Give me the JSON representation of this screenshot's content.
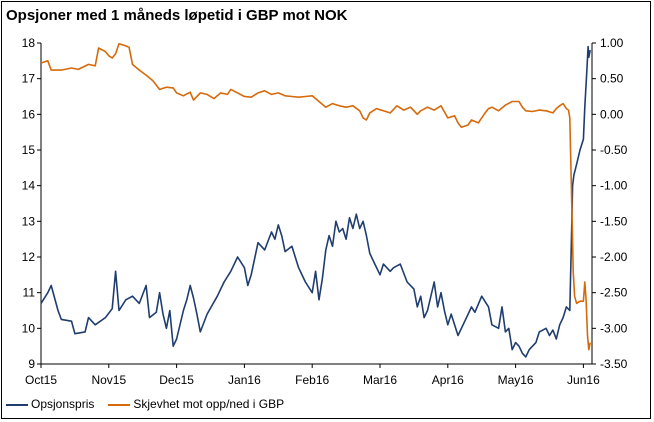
{
  "chart_data": {
    "type": "line",
    "title": "Opsjoner med 1 måneds løpetid i GBP mot NOK",
    "xlabel": "",
    "ylabel": "",
    "x_ticks": [
      "Oct15",
      "Nov15",
      "Dec15",
      "Jan16",
      "Feb16",
      "Mar16",
      "Apr16",
      "May16",
      "Jun16"
    ],
    "x_range": [
      0,
      8.1
    ],
    "y_left": {
      "lim": [
        9,
        18
      ],
      "ticks": [
        "9",
        "10",
        "11",
        "12",
        "13",
        "14",
        "15",
        "16",
        "17",
        "18"
      ]
    },
    "y_right": {
      "lim": [
        -3.5,
        1.0
      ],
      "ticks": [
        "1.00",
        "0.50",
        "0.00",
        "-0.50",
        "-1.00",
        "-1.50",
        "-2.00",
        "-2.50",
        "-3.00",
        "-3.50"
      ]
    },
    "grid": false,
    "legend_placement": "bottom-left",
    "series": [
      {
        "name": "Opsjonspris",
        "axis": "left",
        "color": "#1f3d6e",
        "points": [
          [
            0.0,
            10.7
          ],
          [
            0.1,
            11.0
          ],
          [
            0.15,
            11.2
          ],
          [
            0.25,
            10.5
          ],
          [
            0.3,
            10.25
          ],
          [
            0.45,
            10.2
          ],
          [
            0.5,
            9.85
          ],
          [
            0.65,
            9.9
          ],
          [
            0.7,
            10.3
          ],
          [
            0.8,
            10.1
          ],
          [
            0.95,
            10.3
          ],
          [
            1.05,
            10.55
          ],
          [
            1.1,
            11.6
          ],
          [
            1.15,
            10.5
          ],
          [
            1.25,
            10.8
          ],
          [
            1.35,
            10.9
          ],
          [
            1.45,
            10.7
          ],
          [
            1.55,
            11.2
          ],
          [
            1.6,
            10.3
          ],
          [
            1.7,
            10.45
          ],
          [
            1.75,
            11.0
          ],
          [
            1.8,
            10.4
          ],
          [
            1.85,
            10.0
          ],
          [
            1.9,
            10.5
          ],
          [
            1.95,
            9.5
          ],
          [
            2.0,
            9.7
          ],
          [
            2.1,
            10.5
          ],
          [
            2.15,
            10.8
          ],
          [
            2.2,
            11.2
          ],
          [
            2.25,
            10.85
          ],
          [
            2.3,
            10.4
          ],
          [
            2.35,
            9.9
          ],
          [
            2.45,
            10.4
          ],
          [
            2.6,
            10.9
          ],
          [
            2.7,
            11.3
          ],
          [
            2.8,
            11.6
          ],
          [
            2.9,
            12.0
          ],
          [
            3.0,
            11.7
          ],
          [
            3.05,
            11.2
          ],
          [
            3.1,
            11.5
          ],
          [
            3.2,
            12.4
          ],
          [
            3.3,
            12.2
          ],
          [
            3.4,
            12.7
          ],
          [
            3.45,
            12.5
          ],
          [
            3.5,
            12.9
          ],
          [
            3.55,
            12.6
          ],
          [
            3.6,
            12.15
          ],
          [
            3.7,
            12.3
          ],
          [
            3.8,
            11.7
          ],
          [
            3.9,
            11.3
          ],
          [
            4.0,
            11.0
          ],
          [
            4.05,
            11.6
          ],
          [
            4.1,
            10.8
          ],
          [
            4.15,
            11.4
          ],
          [
            4.2,
            12.2
          ],
          [
            4.25,
            12.6
          ],
          [
            4.3,
            12.3
          ],
          [
            4.35,
            13.0
          ],
          [
            4.4,
            12.7
          ],
          [
            4.45,
            12.8
          ],
          [
            4.5,
            12.5
          ],
          [
            4.55,
            13.1
          ],
          [
            4.6,
            12.8
          ],
          [
            4.65,
            13.2
          ],
          [
            4.7,
            12.8
          ],
          [
            4.75,
            13.0
          ],
          [
            4.8,
            12.6
          ],
          [
            4.85,
            12.1
          ],
          [
            4.9,
            11.9
          ],
          [
            5.0,
            11.5
          ],
          [
            5.05,
            11.8
          ],
          [
            5.15,
            11.6
          ],
          [
            5.2,
            11.7
          ],
          [
            5.3,
            11.8
          ],
          [
            5.4,
            11.3
          ],
          [
            5.5,
            11.1
          ],
          [
            5.55,
            10.6
          ],
          [
            5.6,
            10.9
          ],
          [
            5.65,
            10.3
          ],
          [
            5.7,
            10.5
          ],
          [
            5.8,
            11.3
          ],
          [
            5.85,
            10.6
          ],
          [
            5.9,
            11.0
          ],
          [
            5.95,
            10.5
          ],
          [
            6.0,
            10.1
          ],
          [
            6.05,
            10.4
          ],
          [
            6.15,
            9.8
          ],
          [
            6.25,
            10.2
          ],
          [
            6.35,
            10.6
          ],
          [
            6.4,
            10.45
          ],
          [
            6.5,
            10.9
          ],
          [
            6.6,
            10.6
          ],
          [
            6.65,
            10.1
          ],
          [
            6.75,
            10.0
          ],
          [
            6.8,
            10.6
          ],
          [
            6.85,
            9.9
          ],
          [
            6.9,
            10.0
          ],
          [
            6.95,
            9.4
          ],
          [
            7.0,
            9.6
          ],
          [
            7.05,
            9.5
          ],
          [
            7.1,
            9.3
          ],
          [
            7.15,
            9.2
          ],
          [
            7.2,
            9.4
          ],
          [
            7.3,
            9.6
          ],
          [
            7.35,
            9.9
          ],
          [
            7.45,
            10.0
          ],
          [
            7.5,
            9.8
          ],
          [
            7.55,
            9.95
          ],
          [
            7.6,
            9.7
          ],
          [
            7.65,
            10.1
          ],
          [
            7.7,
            10.3
          ],
          [
            7.75,
            10.6
          ],
          [
            7.8,
            10.5
          ],
          [
            7.82,
            12.2
          ],
          [
            7.84,
            14.0
          ],
          [
            7.86,
            14.3
          ],
          [
            7.9,
            14.6
          ],
          [
            7.95,
            15.0
          ],
          [
            8.0,
            15.3
          ],
          [
            8.02,
            16.2
          ],
          [
            8.05,
            17.2
          ],
          [
            8.07,
            17.9
          ],
          [
            8.08,
            17.6
          ],
          [
            8.1,
            17.8
          ]
        ]
      },
      {
        "name": "Skjevhet mot opp/ned i GBP",
        "axis": "right",
        "color": "#d66a0b",
        "points": [
          [
            0.0,
            0.72
          ],
          [
            0.1,
            0.75
          ],
          [
            0.15,
            0.62
          ],
          [
            0.3,
            0.62
          ],
          [
            0.45,
            0.65
          ],
          [
            0.55,
            0.63
          ],
          [
            0.7,
            0.7
          ],
          [
            0.8,
            0.68
          ],
          [
            0.85,
            0.93
          ],
          [
            0.95,
            0.88
          ],
          [
            1.0,
            0.82
          ],
          [
            1.05,
            0.79
          ],
          [
            1.1,
            0.85
          ],
          [
            1.15,
            0.99
          ],
          [
            1.25,
            0.96
          ],
          [
            1.3,
            0.94
          ],
          [
            1.35,
            0.7
          ],
          [
            1.45,
            0.62
          ],
          [
            1.55,
            0.55
          ],
          [
            1.65,
            0.47
          ],
          [
            1.75,
            0.35
          ],
          [
            1.85,
            0.38
          ],
          [
            1.95,
            0.37
          ],
          [
            2.0,
            0.3
          ],
          [
            2.1,
            0.26
          ],
          [
            2.2,
            0.31
          ],
          [
            2.25,
            0.2
          ],
          [
            2.35,
            0.3
          ],
          [
            2.45,
            0.28
          ],
          [
            2.55,
            0.22
          ],
          [
            2.65,
            0.3
          ],
          [
            2.75,
            0.28
          ],
          [
            2.8,
            0.35
          ],
          [
            2.9,
            0.3
          ],
          [
            3.0,
            0.25
          ],
          [
            3.1,
            0.24
          ],
          [
            3.2,
            0.3
          ],
          [
            3.3,
            0.33
          ],
          [
            3.4,
            0.28
          ],
          [
            3.5,
            0.3
          ],
          [
            3.6,
            0.26
          ],
          [
            3.7,
            0.25
          ],
          [
            3.8,
            0.24
          ],
          [
            3.9,
            0.25
          ],
          [
            4.0,
            0.26
          ],
          [
            4.1,
            0.18
          ],
          [
            4.2,
            0.1
          ],
          [
            4.3,
            0.15
          ],
          [
            4.4,
            0.12
          ],
          [
            4.5,
            0.1
          ],
          [
            4.6,
            0.12
          ],
          [
            4.7,
            0.05
          ],
          [
            4.75,
            -0.05
          ],
          [
            4.8,
            -0.08
          ],
          [
            4.85,
            0.02
          ],
          [
            4.95,
            0.08
          ],
          [
            5.05,
            0.05
          ],
          [
            5.15,
            0.02
          ],
          [
            5.25,
            0.12
          ],
          [
            5.35,
            0.06
          ],
          [
            5.45,
            0.1
          ],
          [
            5.55,
            0.0
          ],
          [
            5.6,
            0.05
          ],
          [
            5.7,
            0.1
          ],
          [
            5.8,
            0.06
          ],
          [
            5.9,
            0.12
          ],
          [
            6.0,
            -0.05
          ],
          [
            6.1,
            -0.02
          ],
          [
            6.15,
            -0.12
          ],
          [
            6.2,
            -0.18
          ],
          [
            6.3,
            -0.15
          ],
          [
            6.35,
            -0.08
          ],
          [
            6.45,
            -0.12
          ],
          [
            6.55,
            0.02
          ],
          [
            6.6,
            0.08
          ],
          [
            6.65,
            0.1
          ],
          [
            6.75,
            0.05
          ],
          [
            6.85,
            0.13
          ],
          [
            6.95,
            0.18
          ],
          [
            7.05,
            0.18
          ],
          [
            7.1,
            0.1
          ],
          [
            7.15,
            0.05
          ],
          [
            7.25,
            0.04
          ],
          [
            7.35,
            0.06
          ],
          [
            7.45,
            0.05
          ],
          [
            7.55,
            0.02
          ],
          [
            7.6,
            0.08
          ],
          [
            7.65,
            0.12
          ],
          [
            7.7,
            0.15
          ],
          [
            7.75,
            0.08
          ],
          [
            7.78,
            0.06
          ],
          [
            7.8,
            -0.05
          ],
          [
            7.82,
            -0.9
          ],
          [
            7.84,
            -1.8
          ],
          [
            7.85,
            -2.2
          ],
          [
            7.87,
            -2.55
          ],
          [
            7.9,
            -2.65
          ],
          [
            7.95,
            -2.62
          ],
          [
            8.0,
            -2.62
          ],
          [
            8.02,
            -2.35
          ],
          [
            8.04,
            -2.6
          ],
          [
            8.06,
            -3.1
          ],
          [
            8.08,
            -3.3
          ],
          [
            8.1,
            -3.2
          ]
        ]
      }
    ]
  }
}
